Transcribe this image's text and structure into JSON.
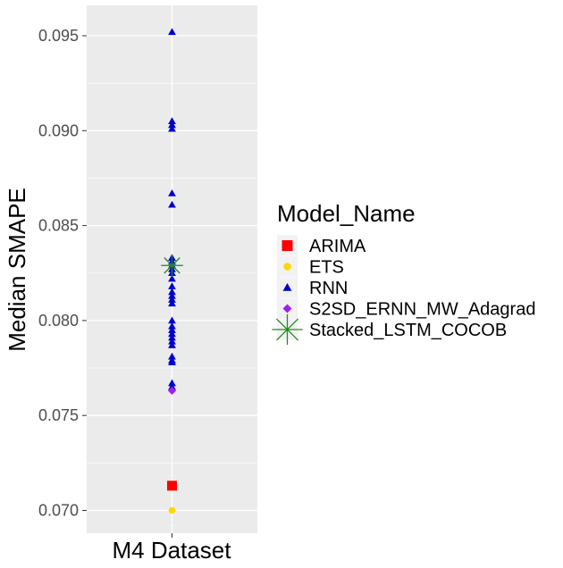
{
  "chart_data": {
    "type": "scatter",
    "xlabel": "",
    "ylabel": "Median SMAPE",
    "categories": [
      "M4 Dataset"
    ],
    "ylim": [
      0.0688,
      0.0966
    ],
    "yticks": [
      0.07,
      0.075,
      0.08,
      0.085,
      0.09,
      0.095
    ],
    "ytick_labels": [
      "0.070",
      "0.075",
      "0.080",
      "0.085",
      "0.090",
      "0.095"
    ],
    "grid": true,
    "background": "#ebebeb",
    "legend": {
      "title": "Model_Name",
      "placement": "right"
    },
    "series": [
      {
        "name": "ARIMA",
        "shape": "square",
        "color": "#ff0000",
        "values": [
          0.0713
        ]
      },
      {
        "name": "ETS",
        "shape": "circle",
        "color": "#ffd700",
        "values": [
          0.07
        ]
      },
      {
        "name": "RNN",
        "shape": "triangle",
        "color": "#0000cd",
        "values": [
          0.0952,
          0.0905,
          0.0903,
          0.0901,
          0.0867,
          0.0861,
          0.0833,
          0.0831,
          0.0829,
          0.0827,
          0.0825,
          0.0822,
          0.0818,
          0.0815,
          0.0813,
          0.0811,
          0.0809,
          0.08,
          0.0797,
          0.0795,
          0.0793,
          0.0791,
          0.0789,
          0.0787,
          0.0781,
          0.0779,
          0.0778,
          0.0767,
          0.0765
        ]
      },
      {
        "name": "S2SD_ERNN_MW_Adagrad",
        "shape": "diamond",
        "color": "#a020f0",
        "values": [
          0.0763
        ]
      },
      {
        "name": "Stacked_LSTM_COCOB",
        "shape": "asterisk",
        "color": "#228b22",
        "values": [
          0.0829
        ]
      }
    ]
  }
}
